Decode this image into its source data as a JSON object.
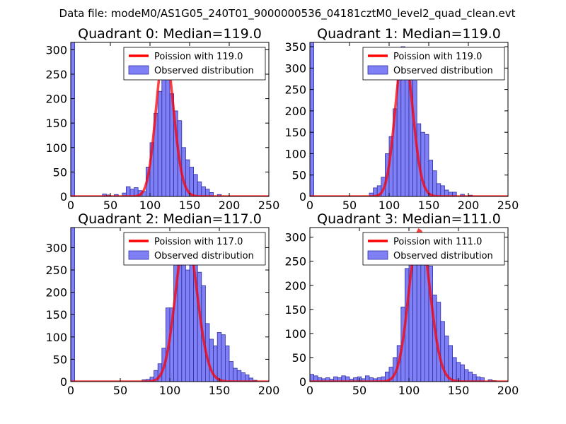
{
  "figure": {
    "suptitle": "Data file: modeM0/AS1G05_240T01_9000000536_04181cztM0_level2_quad_clean.evt"
  },
  "colors": {
    "bar_fill": "#7f7ff6",
    "bar_edge": "#3030a0",
    "poisson_line": "#ff0000",
    "axes": "#000000"
  },
  "chart_data": [
    {
      "type": "bar",
      "title": "Quadrant 0: Median=119.0",
      "xlim": [
        0,
        250
      ],
      "xticks": [
        0,
        50,
        100,
        150,
        200,
        250
      ],
      "ylim": [
        0,
        315
      ],
      "yticks": [
        0,
        50,
        100,
        150,
        200,
        250,
        300
      ],
      "bin_width": 5,
      "bins": [
        [
          0,
          315
        ],
        [
          40,
          5
        ],
        [
          45,
          3
        ],
        [
          55,
          4
        ],
        [
          65,
          7
        ],
        [
          70,
          20
        ],
        [
          75,
          15
        ],
        [
          80,
          18
        ],
        [
          85,
          12
        ],
        [
          90,
          10
        ],
        [
          95,
          60
        ],
        [
          100,
          110
        ],
        [
          105,
          170
        ],
        [
          110,
          215
        ],
        [
          115,
          250
        ],
        [
          120,
          240
        ],
        [
          125,
          210
        ],
        [
          130,
          175
        ],
        [
          135,
          155
        ],
        [
          140,
          100
        ],
        [
          145,
          75
        ],
        [
          150,
          60
        ],
        [
          155,
          45
        ],
        [
          160,
          30
        ],
        [
          165,
          20
        ],
        [
          170,
          15
        ],
        [
          175,
          8
        ],
        [
          185,
          4
        ]
      ],
      "poisson": {
        "label": "Poission with 119.0",
        "mean": 119.0,
        "peak": 300
      },
      "legend": {
        "line_label": "Poission with 119.0",
        "bar_label": "Observed distribution",
        "position": "top-right"
      }
    },
    {
      "type": "bar",
      "title": "Quadrant 1: Median=119.0",
      "xlim": [
        0,
        250
      ],
      "xticks": [
        0,
        50,
        100,
        150,
        200,
        250
      ],
      "ylim": [
        0,
        360
      ],
      "yticks": [
        0,
        50,
        100,
        150,
        200,
        250,
        300,
        350
      ],
      "bin_width": 5,
      "bins": [
        [
          0,
          360
        ],
        [
          75,
          8
        ],
        [
          80,
          20
        ],
        [
          85,
          25
        ],
        [
          90,
          45
        ],
        [
          95,
          100
        ],
        [
          100,
          140
        ],
        [
          105,
          205
        ],
        [
          110,
          300
        ],
        [
          115,
          350
        ],
        [
          120,
          330
        ],
        [
          125,
          280
        ],
        [
          130,
          290
        ],
        [
          135,
          170
        ],
        [
          140,
          150
        ],
        [
          145,
          145
        ],
        [
          150,
          85
        ],
        [
          155,
          60
        ],
        [
          160,
          30
        ],
        [
          165,
          25
        ],
        [
          170,
          15
        ],
        [
          175,
          10
        ],
        [
          180,
          10
        ],
        [
          190,
          5
        ],
        [
          200,
          3
        ]
      ],
      "poisson": {
        "label": "Poission with 119.0",
        "mean": 119.0,
        "peak": 340
      },
      "legend": {
        "line_label": "Poission with 119.0",
        "bar_label": "Observed distribution",
        "position": "top-right"
      }
    },
    {
      "type": "bar",
      "title": "Quadrant 2: Median=117.0",
      "xlim": [
        0,
        200
      ],
      "xticks": [
        0,
        50,
        100,
        150,
        200
      ],
      "ylim": [
        0,
        345
      ],
      "yticks": [
        0,
        50,
        100,
        150,
        200,
        250,
        300
      ],
      "bin_width": 4,
      "bins": [
        [
          0,
          345
        ],
        [
          72,
          4
        ],
        [
          76,
          5
        ],
        [
          80,
          10
        ],
        [
          84,
          25
        ],
        [
          88,
          40
        ],
        [
          92,
          75
        ],
        [
          96,
          165
        ],
        [
          100,
          165
        ],
        [
          104,
          290
        ],
        [
          108,
          315
        ],
        [
          112,
          305
        ],
        [
          116,
          250
        ],
        [
          120,
          280
        ],
        [
          124,
          300
        ],
        [
          128,
          245
        ],
        [
          132,
          215
        ],
        [
          136,
          130
        ],
        [
          140,
          95
        ],
        [
          144,
          80
        ],
        [
          148,
          110
        ],
        [
          152,
          105
        ],
        [
          156,
          80
        ],
        [
          160,
          45
        ],
        [
          164,
          30
        ],
        [
          168,
          25
        ],
        [
          172,
          20
        ],
        [
          176,
          15
        ],
        [
          180,
          8
        ],
        [
          184,
          3
        ]
      ],
      "poisson": {
        "label": "Poission with 117.0",
        "mean": 117.0,
        "peak": 330
      },
      "legend": {
        "line_label": "Poission with 117.0",
        "bar_label": "Observed distribution",
        "position": "top-right"
      }
    },
    {
      "type": "bar",
      "title": "Quadrant 3: Median=111.0",
      "xlim": [
        0,
        200
      ],
      "xticks": [
        0,
        50,
        100,
        150,
        200
      ],
      "ylim": [
        0,
        320
      ],
      "yticks": [
        0,
        50,
        100,
        150,
        200,
        250,
        300
      ],
      "bin_width": 4,
      "bins": [
        [
          0,
          15
        ],
        [
          4,
          12
        ],
        [
          8,
          8
        ],
        [
          12,
          6
        ],
        [
          16,
          8
        ],
        [
          20,
          5
        ],
        [
          24,
          10
        ],
        [
          28,
          8
        ],
        [
          32,
          12
        ],
        [
          36,
          10
        ],
        [
          40,
          5
        ],
        [
          44,
          8
        ],
        [
          48,
          10
        ],
        [
          52,
          6
        ],
        [
          56,
          12
        ],
        [
          60,
          8
        ],
        [
          64,
          6
        ],
        [
          68,
          8
        ],
        [
          72,
          10
        ],
        [
          76,
          20
        ],
        [
          80,
          30
        ],
        [
          84,
          50
        ],
        [
          88,
          75
        ],
        [
          92,
          155
        ],
        [
          96,
          235
        ],
        [
          100,
          300
        ],
        [
          104,
          280
        ],
        [
          108,
          290
        ],
        [
          112,
          255
        ],
        [
          116,
          300
        ],
        [
          120,
          240
        ],
        [
          124,
          180
        ],
        [
          128,
          165
        ],
        [
          132,
          125
        ],
        [
          136,
          95
        ],
        [
          140,
          75
        ],
        [
          144,
          50
        ],
        [
          148,
          40
        ],
        [
          152,
          35
        ],
        [
          156,
          25
        ],
        [
          160,
          20
        ],
        [
          164,
          15
        ],
        [
          168,
          10
        ],
        [
          172,
          8
        ],
        [
          180,
          4
        ],
        [
          184,
          2
        ]
      ],
      "poisson": {
        "label": "Poission with 111.0",
        "mean": 111.0,
        "peak": 315
      },
      "legend": {
        "line_label": "Poission with 111.0",
        "bar_label": "Observed distribution",
        "position": "top-right"
      }
    }
  ]
}
